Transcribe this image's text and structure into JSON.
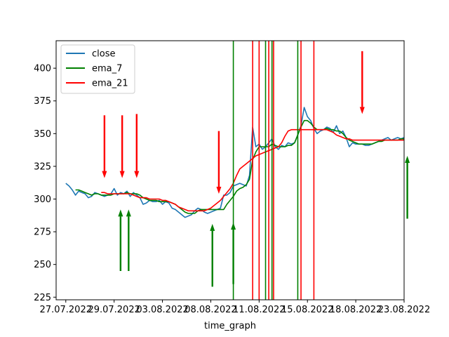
{
  "chart_data": {
    "type": "line",
    "title": "",
    "xlabel": "time_graph",
    "ylabel": "",
    "xlim": [
      -3,
      105
    ],
    "ylim": [
      223,
      421
    ],
    "x_ticks": [
      {
        "x": 0,
        "label": "27.07.2022"
      },
      {
        "x": 15,
        "label": "29.07.2022"
      },
      {
        "x": 30,
        "label": "03.08.2022"
      },
      {
        "x": 45,
        "label": "08.08.2022"
      },
      {
        "x": 60,
        "label": "11.08.2022"
      },
      {
        "x": 75,
        "label": "15.08.2022"
      },
      {
        "x": 90,
        "label": "18.08.2022"
      },
      {
        "x": 105,
        "label": "23.08.2022"
      }
    ],
    "y_ticks": [
      225,
      250,
      275,
      300,
      325,
      350,
      375,
      400
    ],
    "legend": {
      "placement": "top-left",
      "entries": [
        {
          "label": "close",
          "color": "#1f77b4"
        },
        {
          "label": "ema_7",
          "color": "#008000"
        },
        {
          "label": "ema_21",
          "color": "#ff0000"
        }
      ]
    },
    "series": [
      {
        "name": "close",
        "color": "#1f77b4",
        "x": [
          0,
          1,
          2,
          3,
          4,
          5,
          6,
          7,
          8,
          9,
          10,
          11,
          12,
          13,
          14,
          15,
          16,
          17,
          18,
          19,
          20,
          21,
          22,
          23,
          24,
          25,
          26,
          27,
          28,
          29,
          30,
          31,
          32,
          33,
          34,
          35,
          36,
          37,
          38,
          39,
          40,
          41,
          42,
          43,
          44,
          45,
          46,
          47,
          48,
          49,
          50,
          51,
          52,
          53,
          54,
          55,
          56,
          57,
          58,
          59,
          60,
          61,
          62,
          63,
          64,
          65,
          66,
          67,
          68,
          69,
          70,
          71,
          72,
          73,
          74,
          75,
          76,
          77,
          78,
          79,
          80,
          81,
          82,
          83,
          84,
          85,
          86,
          87,
          88,
          89,
          90,
          91,
          92,
          93,
          94,
          95,
          96,
          97,
          98,
          99,
          100,
          101,
          102,
          103,
          104,
          105
        ],
        "y": [
          312,
          310,
          307,
          303,
          306,
          305,
          304,
          301,
          302,
          305,
          304,
          303,
          302,
          303,
          304,
          308,
          303,
          305,
          304,
          306,
          302,
          305,
          303,
          301,
          296,
          297,
          299,
          298,
          298,
          299,
          296,
          298,
          297,
          293,
          292,
          290,
          288,
          286,
          287,
          288,
          291,
          293,
          292,
          290,
          289,
          290,
          291,
          292,
          293,
          303,
          303,
          305,
          310,
          311,
          312,
          311,
          310,
          318,
          355,
          340,
          342,
          338,
          340,
          343,
          346,
          340,
          338,
          341,
          340,
          343,
          342,
          343,
          349,
          356,
          370,
          363,
          360,
          354,
          350,
          352,
          353,
          355,
          354,
          351,
          356,
          350,
          352,
          347,
          340,
          343,
          342,
          342,
          342,
          341,
          341,
          342,
          343,
          344,
          345,
          346,
          347,
          345,
          346,
          347,
          346,
          347
        ],
        "note_range": "close spans x 0..105"
      },
      {
        "name": "ema_7",
        "color": "#008000",
        "x": [
          3,
          4,
          5,
          6,
          7,
          8,
          9,
          10,
          11,
          12,
          13,
          14,
          15,
          16,
          17,
          18,
          19,
          20,
          21,
          22,
          23,
          24,
          25,
          26,
          27,
          28,
          29,
          30,
          31,
          32,
          33,
          34,
          35,
          36,
          37,
          38,
          39,
          40,
          41,
          42,
          43,
          44,
          45,
          46,
          47,
          48,
          49,
          50,
          51,
          52,
          53,
          54,
          55,
          56,
          57,
          58,
          59,
          60,
          61,
          62,
          63,
          64,
          65,
          66,
          67,
          68,
          69,
          70,
          71,
          72,
          73,
          74,
          75,
          76,
          77,
          78,
          79,
          80,
          81,
          82,
          83,
          84,
          85,
          86,
          87,
          88,
          89,
          90,
          91,
          92,
          93,
          94,
          95,
          96,
          97,
          98,
          99,
          100,
          101,
          102,
          103,
          104,
          105
        ],
        "y": [
          307,
          307,
          306,
          305,
          304,
          303,
          304,
          304,
          303,
          303,
          303,
          303,
          304,
          304,
          304,
          304,
          305,
          304,
          304,
          304,
          303,
          301,
          300,
          299,
          299,
          299,
          298,
          298,
          298,
          298,
          297,
          296,
          294,
          292,
          290,
          289,
          289,
          289,
          291,
          292,
          292,
          292,
          292,
          292,
          292,
          292,
          292,
          296,
          299,
          302,
          306,
          308,
          309,
          311,
          315,
          330,
          336,
          340,
          340,
          340,
          340,
          342,
          341,
          340,
          340,
          340,
          341,
          341,
          343,
          349,
          355,
          360,
          360,
          358,
          355,
          353,
          353,
          353,
          354,
          353,
          353,
          352,
          352,
          350,
          347,
          345,
          344,
          343,
          342,
          342,
          342,
          342,
          342,
          343,
          344,
          344,
          345,
          345,
          345,
          345,
          345,
          346,
          346
        ]
      },
      {
        "name": "ema_21",
        "color": "#ff0000",
        "x": [
          11,
          12,
          13,
          14,
          15,
          16,
          17,
          18,
          19,
          20,
          21,
          22,
          23,
          24,
          25,
          26,
          27,
          28,
          29,
          30,
          31,
          32,
          33,
          34,
          35,
          36,
          37,
          38,
          39,
          40,
          41,
          42,
          43,
          44,
          45,
          46,
          47,
          48,
          49,
          50,
          51,
          52,
          53,
          54,
          55,
          56,
          57,
          58,
          59,
          60,
          61,
          62,
          63,
          64,
          65,
          66,
          67,
          68,
          69,
          70,
          71,
          72,
          73,
          74,
          75,
          76,
          77,
          78,
          79,
          80,
          81,
          82,
          83,
          84,
          85,
          86,
          87,
          88,
          89,
          90,
          91,
          92,
          93,
          94,
          95,
          96,
          97,
          98,
          99,
          100,
          101,
          102,
          103,
          104,
          105
        ],
        "y": [
          305,
          305,
          304,
          304,
          304,
          304,
          304,
          304,
          304,
          304,
          303,
          302,
          301,
          301,
          301,
          300,
          300,
          300,
          300,
          299,
          299,
          298,
          297,
          296,
          294,
          293,
          292,
          291,
          291,
          291,
          291,
          291,
          291,
          292,
          293,
          295,
          297,
          299,
          302,
          305,
          308,
          312,
          318,
          323,
          325,
          327,
          329,
          331,
          333,
          334,
          335,
          336,
          337,
          338,
          339,
          340,
          343,
          348,
          352,
          353,
          353,
          353,
          353,
          353,
          353,
          353,
          353,
          353,
          353,
          353,
          353,
          352,
          351,
          349,
          348,
          347,
          346,
          346,
          345,
          345,
          345,
          345,
          345,
          345,
          345,
          345,
          345,
          345,
          345,
          345,
          345,
          345,
          345,
          345,
          345
        ]
      }
    ],
    "vertical_lines": [
      {
        "x": 52,
        "color": "#008000"
      },
      {
        "x": 58,
        "color": "#ff0000"
      },
      {
        "x": 60,
        "color": "#ff0000"
      },
      {
        "x": 62,
        "color": "#008000"
      },
      {
        "x": 63,
        "color": "#ff0000"
      },
      {
        "x": 64,
        "color": "#008000"
      },
      {
        "x": 64.5,
        "color": "#ff0000"
      },
      {
        "x": 72,
        "color": "#008000"
      },
      {
        "x": 73,
        "color": "#ff0000"
      },
      {
        "x": 77,
        "color": "#ff0000"
      }
    ],
    "arrows": [
      {
        "direction": "down",
        "color": "#ff0000",
        "x": 12,
        "y_start": 364,
        "y_end": 316
      },
      {
        "direction": "down",
        "color": "#ff0000",
        "x": 17.5,
        "y_start": 364,
        "y_end": 316
      },
      {
        "direction": "down",
        "color": "#ff0000",
        "x": 22,
        "y_start": 365,
        "y_end": 316
      },
      {
        "direction": "down",
        "color": "#ff0000",
        "x": 47.5,
        "y_start": 352,
        "y_end": 304
      },
      {
        "direction": "down",
        "color": "#ff0000",
        "x": 92,
        "y_start": 413,
        "y_end": 365
      },
      {
        "direction": "up",
        "color": "#008000",
        "x": 17,
        "y_start": 245,
        "y_end": 292
      },
      {
        "direction": "up",
        "color": "#008000",
        "x": 19.5,
        "y_start": 245,
        "y_end": 292
      },
      {
        "direction": "up",
        "color": "#008000",
        "x": 45.5,
        "y_start": 233,
        "y_end": 281
      },
      {
        "direction": "up",
        "color": "#008000",
        "x": 52,
        "y_start": 235,
        "y_end": 282
      },
      {
        "direction": "up",
        "color": "#008000",
        "x": 106,
        "y_start": 285,
        "y_end": 333
      }
    ],
    "grid": false
  }
}
